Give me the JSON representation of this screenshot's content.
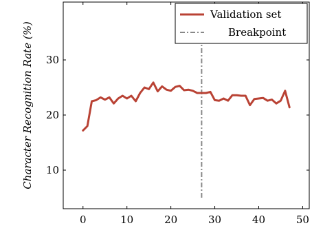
{
  "chart_data": {
    "type": "line",
    "ylabel": "Character Recognition Rate (%)",
    "xlabel": "",
    "xlim": [
      -4.5,
      51.5
    ],
    "ylim": [
      3,
      40.5
    ],
    "xticks": [
      0,
      10,
      20,
      30,
      40,
      50
    ],
    "yticks": [
      10,
      20,
      30
    ],
    "grid": false,
    "legend_position": "top-right",
    "series": [
      {
        "name": "Validation set",
        "color": "#b94234",
        "x": [
          0,
          1,
          2,
          3,
          4,
          5,
          6,
          7,
          8,
          9,
          10,
          11,
          12,
          13,
          14,
          15,
          16,
          17,
          18,
          19,
          20,
          21,
          22,
          23,
          24,
          25,
          26,
          27,
          28,
          29,
          30,
          31,
          32,
          33,
          34,
          35,
          36,
          37,
          38,
          39,
          40,
          41,
          42,
          43,
          44,
          45,
          46,
          47
        ],
        "y": [
          17.2,
          18.0,
          22.5,
          22.7,
          23.2,
          22.8,
          23.2,
          22.1,
          23.0,
          23.5,
          23.0,
          23.5,
          22.5,
          24.0,
          25.0,
          24.7,
          25.9,
          24.3,
          25.2,
          24.6,
          24.4,
          25.1,
          25.3,
          24.5,
          24.6,
          24.4,
          24.0,
          24.0,
          24.0,
          24.2,
          22.7,
          22.6,
          23.0,
          22.6,
          23.6,
          23.6,
          23.5,
          23.5,
          21.8,
          22.9,
          23.0,
          23.1,
          22.6,
          22.8,
          22.1,
          22.6,
          24.4,
          21.4
        ]
      }
    ],
    "reference_lines": [
      {
        "name": "Breakpoint",
        "orientation": "vertical",
        "x": 27,
        "y_from": 5,
        "y_to": 40.5,
        "color": "#888888",
        "style": "dash-dot"
      }
    ]
  }
}
